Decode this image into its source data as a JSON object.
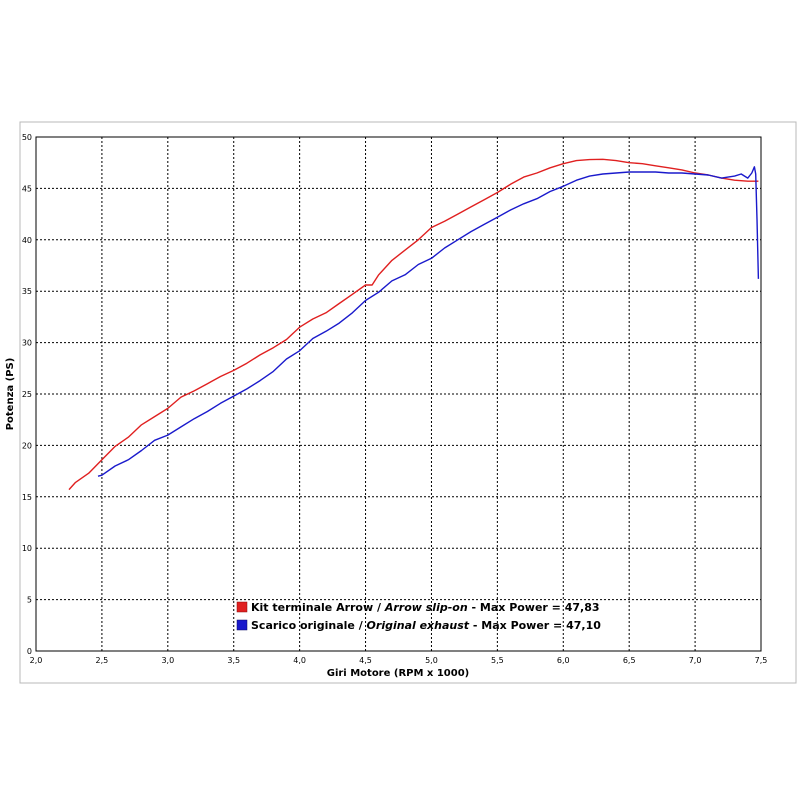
{
  "chart_data": {
    "type": "line",
    "xlabel": "Giri Motore (RPM x 1000)",
    "ylabel": "Potenza (PS)",
    "xlim": [
      2.0,
      7.5
    ],
    "ylim": [
      0,
      50
    ],
    "x_ticks": [
      "2,0",
      "2,5",
      "3,0",
      "3,5",
      "4,0",
      "4,5",
      "5,0",
      "5,5",
      "6,0",
      "6,5",
      "7,0",
      "7,5"
    ],
    "y_ticks": [
      "0",
      "5",
      "10",
      "15",
      "20",
      "25",
      "30",
      "35",
      "40",
      "45",
      "50"
    ],
    "grid": true,
    "legend_position": "bottom-center",
    "series": [
      {
        "name_it": "Kit terminale Arrow",
        "name_en": "Arrow slip-on",
        "max_label": "Max Power = 47,83",
        "color": "#e02020",
        "points": [
          [
            2.25,
            15.7
          ],
          [
            2.3,
            16.4
          ],
          [
            2.4,
            17.3
          ],
          [
            2.5,
            18.6
          ],
          [
            2.6,
            19.9
          ],
          [
            2.7,
            20.8
          ],
          [
            2.8,
            22.0
          ],
          [
            2.9,
            22.8
          ],
          [
            3.0,
            23.6
          ],
          [
            3.1,
            24.7
          ],
          [
            3.2,
            25.3
          ],
          [
            3.3,
            26.0
          ],
          [
            3.4,
            26.7
          ],
          [
            3.5,
            27.3
          ],
          [
            3.6,
            28.0
          ],
          [
            3.7,
            28.8
          ],
          [
            3.8,
            29.5
          ],
          [
            3.9,
            30.3
          ],
          [
            4.0,
            31.5
          ],
          [
            4.1,
            32.3
          ],
          [
            4.2,
            32.9
          ],
          [
            4.3,
            33.8
          ],
          [
            4.4,
            34.7
          ],
          [
            4.5,
            35.6
          ],
          [
            4.55,
            35.6
          ],
          [
            4.6,
            36.6
          ],
          [
            4.7,
            38.0
          ],
          [
            4.8,
            39.0
          ],
          [
            4.9,
            40.0
          ],
          [
            5.0,
            41.2
          ],
          [
            5.1,
            41.8
          ],
          [
            5.2,
            42.5
          ],
          [
            5.3,
            43.2
          ],
          [
            5.4,
            43.9
          ],
          [
            5.5,
            44.6
          ],
          [
            5.6,
            45.4
          ],
          [
            5.7,
            46.1
          ],
          [
            5.8,
            46.5
          ],
          [
            5.9,
            47.0
          ],
          [
            6.0,
            47.4
          ],
          [
            6.1,
            47.7
          ],
          [
            6.2,
            47.8
          ],
          [
            6.3,
            47.83
          ],
          [
            6.4,
            47.7
          ],
          [
            6.5,
            47.5
          ],
          [
            6.6,
            47.4
          ],
          [
            6.7,
            47.2
          ],
          [
            6.8,
            47.0
          ],
          [
            6.9,
            46.8
          ],
          [
            7.0,
            46.5
          ],
          [
            7.1,
            46.3
          ],
          [
            7.2,
            46.0
          ],
          [
            7.3,
            45.8
          ],
          [
            7.4,
            45.7
          ],
          [
            7.45,
            45.7
          ],
          [
            7.48,
            45.7
          ]
        ]
      },
      {
        "name_it": "Scarico originale",
        "name_en": "Original exhaust",
        "max_label": "Max Power = 47,10",
        "color": "#1a1acc",
        "points": [
          [
            2.47,
            17.0
          ],
          [
            2.5,
            17.1
          ],
          [
            2.6,
            18.0
          ],
          [
            2.7,
            18.6
          ],
          [
            2.8,
            19.5
          ],
          [
            2.9,
            20.5
          ],
          [
            3.0,
            21.0
          ],
          [
            3.1,
            21.8
          ],
          [
            3.2,
            22.6
          ],
          [
            3.3,
            23.3
          ],
          [
            3.4,
            24.1
          ],
          [
            3.5,
            24.8
          ],
          [
            3.6,
            25.5
          ],
          [
            3.7,
            26.3
          ],
          [
            3.8,
            27.2
          ],
          [
            3.9,
            28.4
          ],
          [
            4.0,
            29.2
          ],
          [
            4.1,
            30.4
          ],
          [
            4.2,
            31.1
          ],
          [
            4.3,
            31.9
          ],
          [
            4.4,
            32.9
          ],
          [
            4.5,
            34.1
          ],
          [
            4.6,
            34.9
          ],
          [
            4.7,
            36.0
          ],
          [
            4.8,
            36.6
          ],
          [
            4.9,
            37.6
          ],
          [
            5.0,
            38.2
          ],
          [
            5.1,
            39.2
          ],
          [
            5.2,
            40.0
          ],
          [
            5.3,
            40.8
          ],
          [
            5.4,
            41.5
          ],
          [
            5.5,
            42.2
          ],
          [
            5.6,
            42.9
          ],
          [
            5.7,
            43.5
          ],
          [
            5.8,
            44.0
          ],
          [
            5.9,
            44.7
          ],
          [
            6.0,
            45.2
          ],
          [
            6.1,
            45.8
          ],
          [
            6.2,
            46.2
          ],
          [
            6.3,
            46.4
          ],
          [
            6.4,
            46.5
          ],
          [
            6.5,
            46.6
          ],
          [
            6.6,
            46.6
          ],
          [
            6.7,
            46.6
          ],
          [
            6.8,
            46.5
          ],
          [
            6.9,
            46.5
          ],
          [
            7.0,
            46.4
          ],
          [
            7.1,
            46.3
          ],
          [
            7.2,
            46.0
          ],
          [
            7.3,
            46.2
          ],
          [
            7.35,
            46.4
          ],
          [
            7.4,
            46.0
          ],
          [
            7.43,
            46.5
          ],
          [
            7.45,
            47.1
          ],
          [
            7.46,
            46.4
          ],
          [
            7.47,
            42.0
          ],
          [
            7.48,
            36.2
          ]
        ]
      }
    ]
  },
  "legend": {
    "separator": " / ",
    "items": [
      {
        "label_it": "Kit terminale Arrow",
        "label_en": "Arrow slip-on",
        "suffix": " - Max Power = 47,83",
        "color": "#e02020",
        "swatch_dark": "#b01010"
      },
      {
        "label_it": "Scarico originale",
        "label_en": "Original exhaust",
        "suffix": " - Max Power = 47,10",
        "color": "#1a1acc",
        "swatch_dark": "#0a0a88"
      }
    ]
  }
}
